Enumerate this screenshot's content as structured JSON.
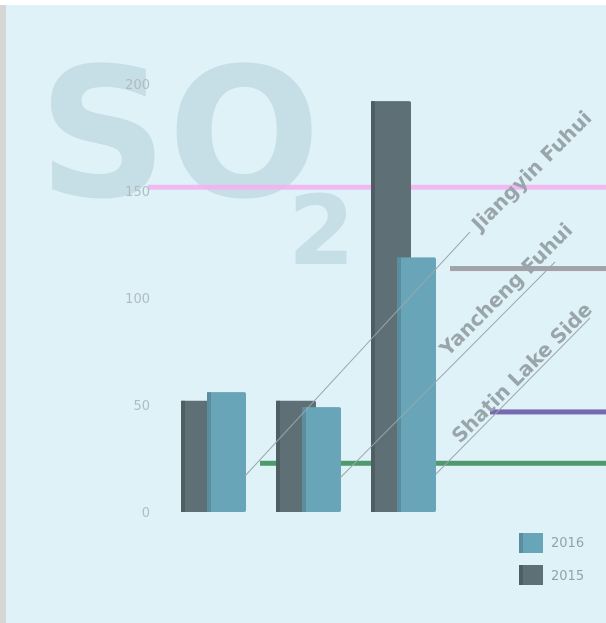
{
  "watermark": {
    "main": "SO",
    "sub": "2"
  },
  "colors": {
    "panel": "#dff2f8",
    "series_2016": "#68a5b8",
    "series_2015": "#5e6f75",
    "line_pink": "#f3b2f0",
    "line_gray": "#9b9aa1",
    "line_purple": "#6a5aa8",
    "line_green": "#3f8f5f"
  },
  "legend": {
    "entries": [
      {
        "label": "2016",
        "color": "#68a5b8"
      },
      {
        "label": "2015",
        "color": "#5e6f75"
      }
    ]
  },
  "chart_data": {
    "type": "bar",
    "ylim": [
      0,
      200
    ],
    "yticks": [
      0,
      50,
      100,
      150,
      200
    ],
    "categories": [
      "Shatin Lake Side",
      "Yancheng Fuhui",
      "Jiangyin Fuhui"
    ],
    "series": [
      {
        "name": "2015",
        "values": [
          52,
          52,
          192
        ]
      },
      {
        "name": "2016",
        "values": [
          56,
          49,
          119
        ]
      }
    ],
    "reference_lines": [
      {
        "value": 152,
        "color": "#f3b2f0"
      },
      {
        "value": 114,
        "color": "#9b9aa1"
      },
      {
        "value": 47,
        "color": "#6a5aa8"
      },
      {
        "value": 23,
        "color": "#3f8f5f"
      }
    ],
    "grid": false,
    "legend_position": "bottom-right"
  }
}
